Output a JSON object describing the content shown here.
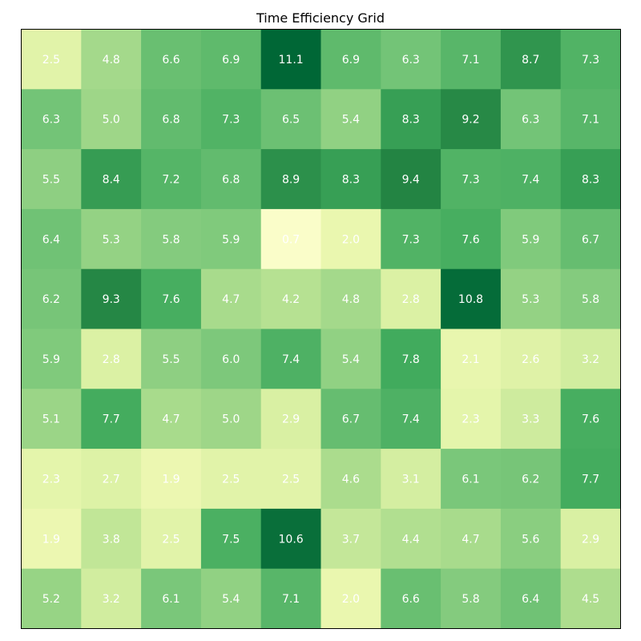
{
  "chart_data": {
    "type": "heatmap",
    "title": "Time Efficiency Grid",
    "xlabel": "",
    "ylabel": "",
    "grid": false,
    "colormap": "YlGn",
    "vmin": 0.7,
    "vmax": 11.1,
    "values": [
      [
        2.5,
        4.8,
        6.6,
        6.9,
        11.1,
        6.9,
        6.3,
        7.1,
        8.7,
        7.3
      ],
      [
        6.3,
        5.0,
        6.8,
        7.3,
        6.5,
        5.4,
        8.3,
        9.2,
        6.3,
        7.1
      ],
      [
        5.5,
        8.4,
        7.2,
        6.8,
        8.9,
        8.3,
        9.4,
        7.3,
        7.4,
        8.3
      ],
      [
        6.4,
        5.3,
        5.8,
        5.9,
        0.7,
        2.0,
        7.3,
        7.6,
        5.9,
        6.7
      ],
      [
        6.2,
        9.3,
        7.6,
        4.7,
        4.2,
        4.8,
        2.8,
        10.8,
        5.3,
        5.8
      ],
      [
        5.9,
        2.8,
        5.5,
        6.0,
        7.4,
        5.4,
        7.8,
        2.1,
        2.6,
        3.2
      ],
      [
        5.1,
        7.7,
        4.7,
        5.0,
        2.9,
        6.7,
        7.4,
        2.3,
        3.3,
        7.6
      ],
      [
        2.3,
        2.7,
        1.9,
        2.5,
        2.5,
        4.6,
        3.1,
        6.1,
        6.2,
        7.7
      ],
      [
        1.9,
        3.8,
        2.5,
        7.5,
        10.6,
        3.7,
        4.4,
        4.7,
        5.6,
        2.9
      ],
      [
        5.2,
        3.2,
        6.1,
        5.4,
        7.1,
        2.0,
        6.6,
        5.8,
        6.4,
        4.5
      ]
    ]
  }
}
